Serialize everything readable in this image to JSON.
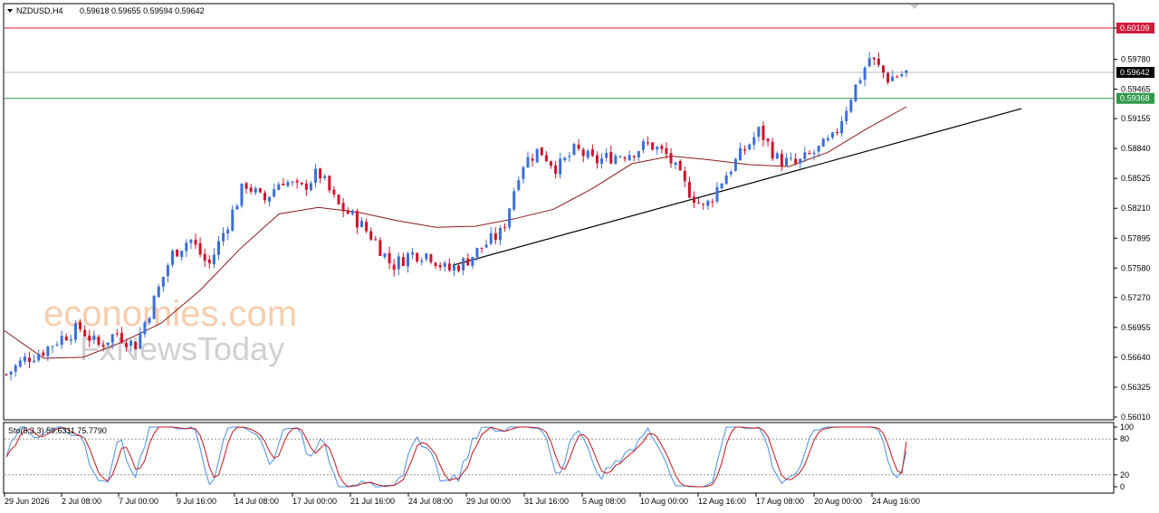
{
  "header": {
    "symbol": "NZDUSD,H4",
    "ohlc": "0.59618 0.59655 0.59594 0.59642"
  },
  "watermark": {
    "line1": "economies.com",
    "line2": "FxNewsToday"
  },
  "indicator": {
    "label": "Sto(5,3,3) 59.6311 75.7790",
    "levels": [
      100,
      80,
      20,
      0
    ],
    "dotted_levels": [
      80,
      20
    ]
  },
  "price_levels": {
    "resistance": {
      "value": "0.60109",
      "color": "#d11a3a"
    },
    "current": {
      "value": "0.59642",
      "color": "#000000"
    },
    "support": {
      "value": "0.59368",
      "color": "#2e9a4a"
    }
  },
  "colors": {
    "bull": "#3a6fd8",
    "bear": "#d0112b",
    "ma": "#8b1a1a",
    "trendline": "#000000",
    "stoch_main": "#4a90e2",
    "stoch_signal": "#c0161c"
  },
  "chart_data": {
    "type": "candlestick",
    "title": "",
    "y_range": [
      0.5601,
      0.6031
    ],
    "y_ticks": [
      "0.60109",
      "0.59780",
      "0.59465",
      "0.59155",
      "0.58840",
      "0.58525",
      "0.58210",
      "0.57895",
      "0.57580",
      "0.57270",
      "0.56955",
      "0.56640",
      "0.56325",
      "0.56010"
    ],
    "x_ticks": [
      "29 Jun 2026",
      "2 Jul 08:00",
      "7 Jul 00:00",
      "9 Jul 16:00",
      "14 Jul 08:00",
      "17 Jul 00:00",
      "21 Jul 16:00",
      "24 Jul 08:00",
      "29 Jul 00:00",
      "31 Jul 16:00",
      "5 Aug 08:00",
      "10 Aug 00:00",
      "12 Aug 16:00",
      "17 Aug 08:00",
      "20 Aug 00:00",
      "24 Aug 16:00"
    ],
    "close_path": [
      0.5646,
      0.5662,
      0.5671,
      0.5685,
      0.5695,
      0.5676,
      0.569,
      0.5676,
      0.5722,
      0.5772,
      0.5789,
      0.576,
      0.5803,
      0.5848,
      0.5828,
      0.5852,
      0.584,
      0.5859,
      0.5825,
      0.581,
      0.5789,
      0.576,
      0.5773,
      0.5773,
      0.5755,
      0.5765,
      0.5782,
      0.5796,
      0.5866,
      0.5883,
      0.5863,
      0.5883,
      0.587,
      0.5876,
      0.588,
      0.5889,
      0.5876,
      0.5843,
      0.582,
      0.5852,
      0.5878,
      0.5903,
      0.5872,
      0.5867,
      0.588,
      0.5894,
      0.594,
      0.598,
      0.5958,
      0.5964
    ],
    "moving_average": [
      0.5692,
      0.5663,
      0.5664,
      0.568,
      0.57,
      0.5735,
      0.5778,
      0.5815,
      0.5822,
      0.5817,
      0.5808,
      0.5801,
      0.5802,
      0.581,
      0.582,
      0.5842,
      0.5868,
      0.5876,
      0.5872,
      0.5867,
      0.5865,
      0.588,
      0.5905,
      0.5928
    ],
    "trendline": {
      "start": [
        "24 Jul",
        0.5761
      ],
      "end": [
        "26 Aug",
        0.5926
      ]
    },
    "stochastic": {
      "range": [
        0,
        100
      ],
      "main_last": 59.6311,
      "signal_last": 75.779
    }
  }
}
